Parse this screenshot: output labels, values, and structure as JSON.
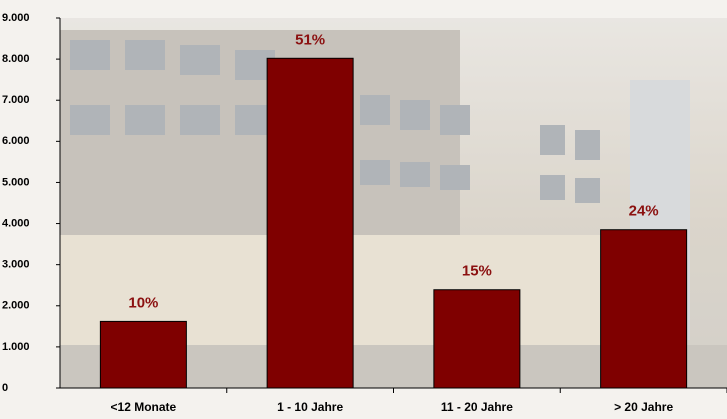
{
  "chart_data": {
    "type": "bar",
    "categories": [
      "<12 Monate",
      "1 - 10 Jahre",
      "11 - 20 Jahre",
      "> 20 Jahre"
    ],
    "values": [
      1620,
      8020,
      2390,
      3850
    ],
    "shares": [
      "10%",
      "51%",
      "15%",
      "24%"
    ],
    "color": "#7f0000",
    "ylim": [
      0,
      9000
    ],
    "yticks": [
      0,
      {
        "value": 1000,
        "label": "1.000"
      },
      {
        "value": 2000,
        "label": "2.000"
      },
      {
        "value": 3000,
        "label": "3.000"
      },
      {
        "value": 4000,
        "label": "4.000"
      },
      {
        "value": 5000,
        "label": "5.000"
      },
      {
        "value": 6000,
        "label": "6.000"
      },
      {
        "value": 7000,
        "label": "7.000"
      },
      {
        "value": 8000,
        "label": "8.000"
      },
      {
        "value": 9000,
        "label": "9.000"
      }
    ],
    "grid": false
  }
}
